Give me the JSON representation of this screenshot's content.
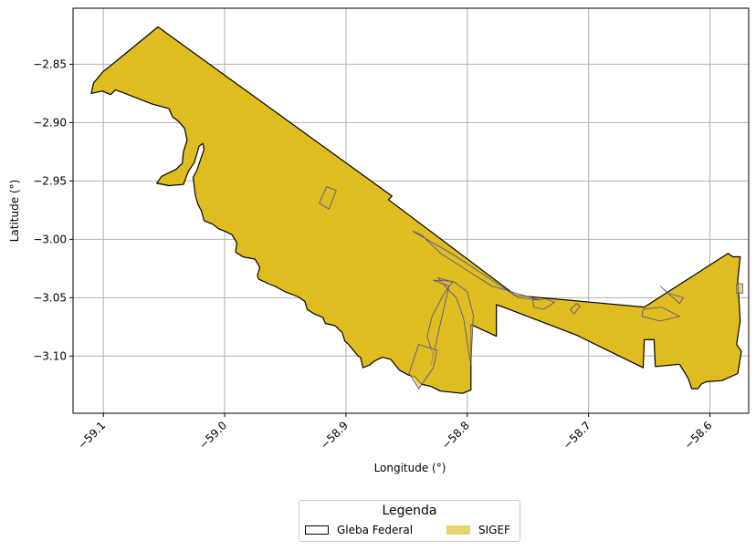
{
  "chart_data": {
    "type": "map",
    "xlabel": "Longitude (°)",
    "ylabel": "Latitude (°)",
    "xlim": [
      -59.125,
      -58.568
    ],
    "ylim": [
      -3.149,
      -2.802
    ],
    "grid": true,
    "x_ticks": [
      {
        "value": -59.1,
        "label": "−59.1"
      },
      {
        "value": -59.0,
        "label": "−59.0"
      },
      {
        "value": -58.9,
        "label": "−58.9"
      },
      {
        "value": -58.8,
        "label": "−58.8"
      },
      {
        "value": -58.7,
        "label": "−58.7"
      },
      {
        "value": -58.6,
        "label": "−58.6"
      }
    ],
    "y_ticks": [
      {
        "value": -2.85,
        "label": "−2.85"
      },
      {
        "value": -2.9,
        "label": "−2.90"
      },
      {
        "value": -2.95,
        "label": "−2.95"
      },
      {
        "value": -3.0,
        "label": "−3.00"
      },
      {
        "value": -3.05,
        "label": "−3.05"
      },
      {
        "value": -3.1,
        "label": "−3.10"
      }
    ],
    "colors": {
      "gleba_edge": "#000000",
      "sigef_fill": "#dfbc20",
      "sigef_edge": "#4a4aa0",
      "grid": "#b0b0b0"
    },
    "gleba_outline": [
      [
        -59.055,
        -2.818
      ],
      [
        -58.862,
        -2.963
      ],
      [
        -58.865,
        -2.966
      ],
      [
        -58.76,
        -3.048
      ],
      [
        -58.654,
        -3.058
      ],
      [
        -58.585,
        -3.012
      ],
      [
        -58.581,
        -3.015
      ],
      [
        -58.575,
        -3.015
      ],
      [
        -58.577,
        -3.035
      ],
      [
        -58.575,
        -3.07
      ],
      [
        -58.578,
        -3.09
      ],
      [
        -58.574,
        -3.096
      ],
      [
        -58.577,
        -3.115
      ],
      [
        -58.59,
        -3.121
      ],
      [
        -58.603,
        -3.122
      ],
      [
        -58.607,
        -3.124
      ],
      [
        -58.61,
        -3.128
      ],
      [
        -58.615,
        -3.128
      ],
      [
        -58.618,
        -3.119
      ],
      [
        -58.625,
        -3.107
      ],
      [
        -58.645,
        -3.109
      ],
      [
        -58.646,
        -3.086
      ],
      [
        -58.654,
        -3.086
      ],
      [
        -58.655,
        -3.11
      ],
      [
        -58.71,
        -3.082
      ],
      [
        -58.768,
        -3.059
      ],
      [
        -58.776,
        -3.056
      ],
      [
        -58.776,
        -3.083
      ],
      [
        -58.797,
        -3.073
      ],
      [
        -58.797,
        -3.129
      ],
      [
        -58.804,
        -3.132
      ],
      [
        -58.822,
        -3.13
      ],
      [
        -58.83,
        -3.126
      ],
      [
        -58.838,
        -3.124
      ],
      [
        -58.843,
        -3.118
      ],
      [
        -58.849,
        -3.116
      ],
      [
        -58.856,
        -3.112
      ],
      [
        -58.863,
        -3.103
      ],
      [
        -58.87,
        -3.101
      ],
      [
        -58.876,
        -3.104
      ],
      [
        -58.881,
        -3.108
      ],
      [
        -58.886,
        -3.11
      ],
      [
        -58.888,
        -3.101
      ],
      [
        -58.89,
        -3.1
      ],
      [
        -58.898,
        -3.09
      ],
      [
        -58.901,
        -3.087
      ],
      [
        -58.903,
        -3.08
      ],
      [
        -58.909,
        -3.074
      ],
      [
        -58.917,
        -3.072
      ],
      [
        -58.919,
        -3.067
      ],
      [
        -58.926,
        -3.064
      ],
      [
        -58.932,
        -3.06
      ],
      [
        -58.934,
        -3.053
      ],
      [
        -58.94,
        -3.049
      ],
      [
        -58.95,
        -3.045
      ],
      [
        -58.959,
        -3.04
      ],
      [
        -58.964,
        -3.038
      ],
      [
        -58.972,
        -3.034
      ],
      [
        -58.973,
        -3.031
      ],
      [
        -58.971,
        -3.024
      ],
      [
        -58.975,
        -3.017
      ],
      [
        -58.985,
        -3.015
      ],
      [
        -58.991,
        -3.011
      ],
      [
        -58.99,
        -3.003
      ],
      [
        -58.994,
        -2.996
      ],
      [
        -59.0,
        -2.993
      ],
      [
        -59.005,
        -2.991
      ],
      [
        -59.01,
        -2.987
      ],
      [
        -59.017,
        -2.984
      ],
      [
        -59.019,
        -2.976
      ],
      [
        -59.022,
        -2.97
      ],
      [
        -59.024,
        -2.963
      ],
      [
        -59.025,
        -2.956
      ],
      [
        -59.026,
        -2.947
      ],
      [
        -59.023,
        -2.941
      ],
      [
        -59.02,
        -2.932
      ],
      [
        -59.017,
        -2.923
      ],
      [
        -59.018,
        -2.918
      ],
      [
        -59.021,
        -2.92
      ],
      [
        -59.025,
        -2.934
      ],
      [
        -59.03,
        -2.942
      ],
      [
        -59.034,
        -2.953
      ],
      [
        -59.046,
        -2.954
      ],
      [
        -59.056,
        -2.952
      ],
      [
        -59.052,
        -2.946
      ],
      [
        -59.04,
        -2.94
      ],
      [
        -59.035,
        -2.935
      ],
      [
        -59.034,
        -2.925
      ],
      [
        -59.031,
        -2.915
      ],
      [
        -59.033,
        -2.905
      ],
      [
        -59.038,
        -2.899
      ],
      [
        -59.043,
        -2.895
      ],
      [
        -59.046,
        -2.888
      ],
      [
        -59.06,
        -2.884
      ],
      [
        -59.075,
        -2.878
      ],
      [
        -59.082,
        -2.875
      ],
      [
        -59.09,
        -2.872
      ],
      [
        -59.094,
        -2.876
      ],
      [
        -59.101,
        -2.873
      ],
      [
        -59.11,
        -2.875
      ],
      [
        -59.108,
        -2.866
      ],
      [
        -59.1,
        -2.856
      ],
      [
        -59.095,
        -2.852
      ]
    ],
    "sigef_parcels": [
      [
        [
          -58.916,
          -2.955
        ],
        [
          -58.908,
          -2.958
        ],
        [
          -58.914,
          -2.974
        ],
        [
          -58.922,
          -2.969
        ]
      ],
      [
        [
          -58.845,
          -2.993
        ],
        [
          -58.815,
          -3.011
        ],
        [
          -58.8,
          -3.021
        ],
        [
          -58.758,
          -3.05
        ],
        [
          -58.74,
          -3.052
        ],
        [
          -58.78,
          -3.04
        ],
        [
          -58.822,
          -3.012
        ],
        [
          -58.838,
          -2.996
        ]
      ],
      [
        [
          -58.824,
          -3.033
        ],
        [
          -58.81,
          -3.037
        ],
        [
          -58.8,
          -3.045
        ],
        [
          -58.795,
          -3.065
        ],
        [
          -58.797,
          -3.108
        ],
        [
          -58.803,
          -3.068
        ],
        [
          -58.809,
          -3.05
        ],
        [
          -58.815,
          -3.044
        ]
      ],
      [
        [
          -58.828,
          -3.035
        ],
        [
          -58.812,
          -3.036
        ],
        [
          -58.82,
          -3.048
        ],
        [
          -58.829,
          -3.066
        ],
        [
          -58.833,
          -3.083
        ],
        [
          -58.828,
          -3.1
        ],
        [
          -58.83,
          -3.108
        ],
        [
          -58.815,
          -3.04
        ]
      ],
      [
        [
          -58.84,
          -3.09
        ],
        [
          -58.825,
          -3.095
        ],
        [
          -58.828,
          -3.11
        ],
        [
          -58.84,
          -3.128
        ],
        [
          -58.848,
          -3.115
        ]
      ],
      [
        [
          -58.746,
          -3.052
        ],
        [
          -58.735,
          -3.051
        ],
        [
          -58.728,
          -3.054
        ],
        [
          -58.737,
          -3.06
        ],
        [
          -58.745,
          -3.058
        ]
      ],
      [
        [
          -58.71,
          -3.055
        ],
        [
          -58.707,
          -3.057
        ],
        [
          -58.712,
          -3.064
        ],
        [
          -58.715,
          -3.06
        ]
      ],
      [
        [
          -58.641,
          -3.04
        ],
        [
          -58.625,
          -3.055
        ],
        [
          -58.622,
          -3.05
        ],
        [
          -58.635,
          -3.046
        ]
      ],
      [
        [
          -58.655,
          -3.06
        ],
        [
          -58.64,
          -3.058
        ],
        [
          -58.625,
          -3.066
        ],
        [
          -58.641,
          -3.07
        ],
        [
          -58.656,
          -3.066
        ]
      ],
      [
        [
          -58.578,
          -3.038
        ],
        [
          -58.573,
          -3.038
        ],
        [
          -58.573,
          -3.046
        ],
        [
          -58.578,
          -3.046
        ]
      ]
    ],
    "legend": {
      "title": "Legenda",
      "placement": "bottom-center, below axes",
      "items": [
        {
          "label": "Gleba Federal",
          "style": "outline"
        },
        {
          "label": "SIGEF",
          "style": "fill"
        }
      ]
    }
  }
}
